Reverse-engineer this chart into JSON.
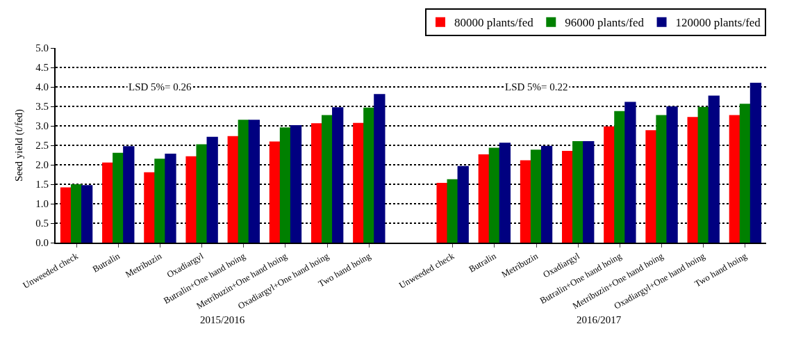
{
  "chart_data": {
    "type": "bar",
    "ylabel": "Seed yield (t/fed)",
    "categories": [
      "Unweeded check",
      "Butralin",
      "Metribuzin",
      "Oxadiargyl",
      "Butralin+One hand hoing",
      "Metribuzin+One hand hoing",
      "Oxadiargyl+One hand hoing",
      "Two hand hoing",
      null,
      "Unweeded check",
      "Butralin",
      "Metribuzin",
      "Oxadiargyl",
      "Butralin+One hand hoing",
      "Metribuzin+One hand hoing",
      "Oxadiargyl+One hand hoing",
      "Two hand hoing"
    ],
    "series": [
      {
        "name": "80000 plants/fed",
        "color": "#ff0000",
        "values": [
          1.4,
          2.04,
          1.79,
          2.2,
          2.72,
          2.58,
          3.05,
          3.06,
          null,
          1.52,
          2.25,
          2.1,
          2.34,
          2.97,
          2.87,
          3.21,
          3.26
        ]
      },
      {
        "name": "96000 plants/fed",
        "color": "#008000",
        "values": [
          1.48,
          2.29,
          2.14,
          2.51,
          3.14,
          2.94,
          3.26,
          3.45,
          null,
          1.61,
          2.42,
          2.37,
          2.59,
          3.36,
          3.26,
          3.47,
          3.55
        ]
      },
      {
        "name": "120000 plants/fed",
        "color": "#000080",
        "values": [
          1.46,
          2.46,
          2.27,
          2.7,
          3.14,
          3.0,
          3.46,
          3.8,
          null,
          1.95,
          2.55,
          2.47,
          2.59,
          3.6,
          3.48,
          3.76,
          4.09
        ]
      }
    ],
    "ylim": [
      0,
      5
    ],
    "yticks": [
      {
        "value": 0,
        "label": "0.0"
      },
      0.5,
      {
        "value": 1,
        "label": "1.0"
      },
      1.5,
      {
        "value": 2,
        "label": "2.0"
      },
      2.5,
      {
        "value": 3,
        "label": "3.0"
      },
      3.5,
      {
        "value": 4,
        "label": "4.0"
      },
      4.5,
      {
        "value": 5,
        "label": "5.0"
      }
    ],
    "grid": "y",
    "legend": "top right",
    "annotations": [
      "LSD 5%= 0.26",
      "LSD 5%= 0.22",
      "2015/2016",
      "2016/2017"
    ]
  }
}
